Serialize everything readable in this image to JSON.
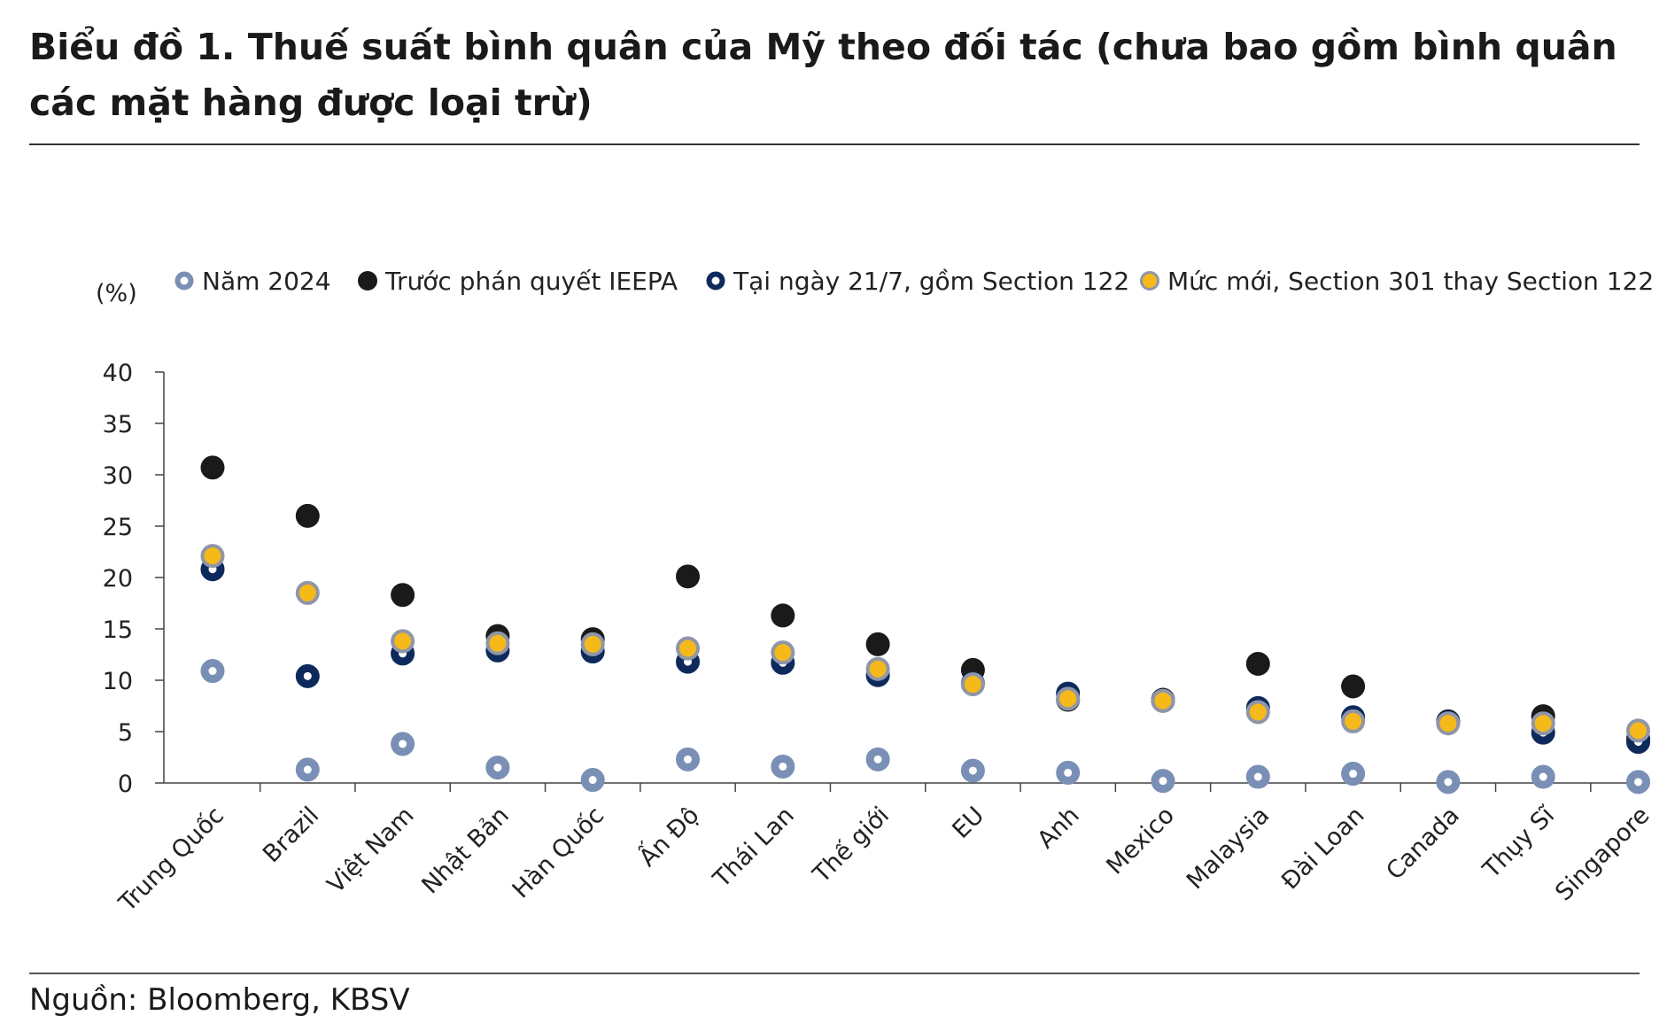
{
  "title": "Biểu đồ 1. Thuế suất bình quân của Mỹ theo đối tác (chưa bao gồm bình quân các mặt hàng được loại trừ)",
  "source": "Nguồn: Bloomberg, KBSV",
  "chart_data": {
    "type": "scatter",
    "ylabel": "(%)",
    "ylim": [
      0,
      40
    ],
    "yticks": [
      0,
      5,
      10,
      15,
      20,
      25,
      30,
      35,
      40
    ],
    "categories": [
      "Trung Quốc",
      "Brazil",
      "Việt Nam",
      "Nhật Bản",
      "Hàn Quốc",
      "Ấn Độ",
      "Thái Lan",
      "Thế giới",
      "EU",
      "Anh",
      "Mexico",
      "Malaysia",
      "Đài Loan",
      "Canada",
      "Thụy Sĩ",
      "Singapore"
    ],
    "legend_position": "top",
    "series": [
      {
        "name": "Năm 2024",
        "color": "#7a8fb5",
        "marker": "ring",
        "values": [
          10.9,
          1.3,
          3.8,
          1.5,
          0.3,
          2.3,
          1.6,
          2.3,
          1.2,
          1.0,
          0.2,
          0.6,
          0.9,
          0.1,
          0.6,
          0.1
        ]
      },
      {
        "name": "Trước phán quyết IEEPA",
        "color": "#1a1a1a",
        "marker": "dot",
        "values": [
          30.7,
          26.0,
          18.3,
          14.3,
          14.0,
          20.1,
          16.3,
          13.5,
          11.0,
          8.1,
          8.1,
          11.6,
          9.4,
          6.0,
          6.5,
          4.3
        ]
      },
      {
        "name": "Tại ngày 21/7, gồm Section 122",
        "color": "#0e2a5c",
        "marker": "ring",
        "values": [
          20.8,
          10.4,
          12.6,
          12.9,
          12.8,
          11.8,
          11.7,
          10.5,
          9.7,
          8.7,
          8.0,
          7.3,
          6.4,
          5.9,
          4.9,
          4.0
        ]
      },
      {
        "name": "Mức mới, Section 301 thay Section 122",
        "color": "#f5b919",
        "border": "#8f96a8",
        "marker": "filled",
        "values": [
          22.1,
          18.5,
          13.8,
          13.6,
          13.5,
          13.1,
          12.7,
          11.1,
          9.6,
          8.2,
          8.0,
          6.9,
          6.0,
          5.8,
          5.8,
          5.1
        ]
      }
    ]
  }
}
